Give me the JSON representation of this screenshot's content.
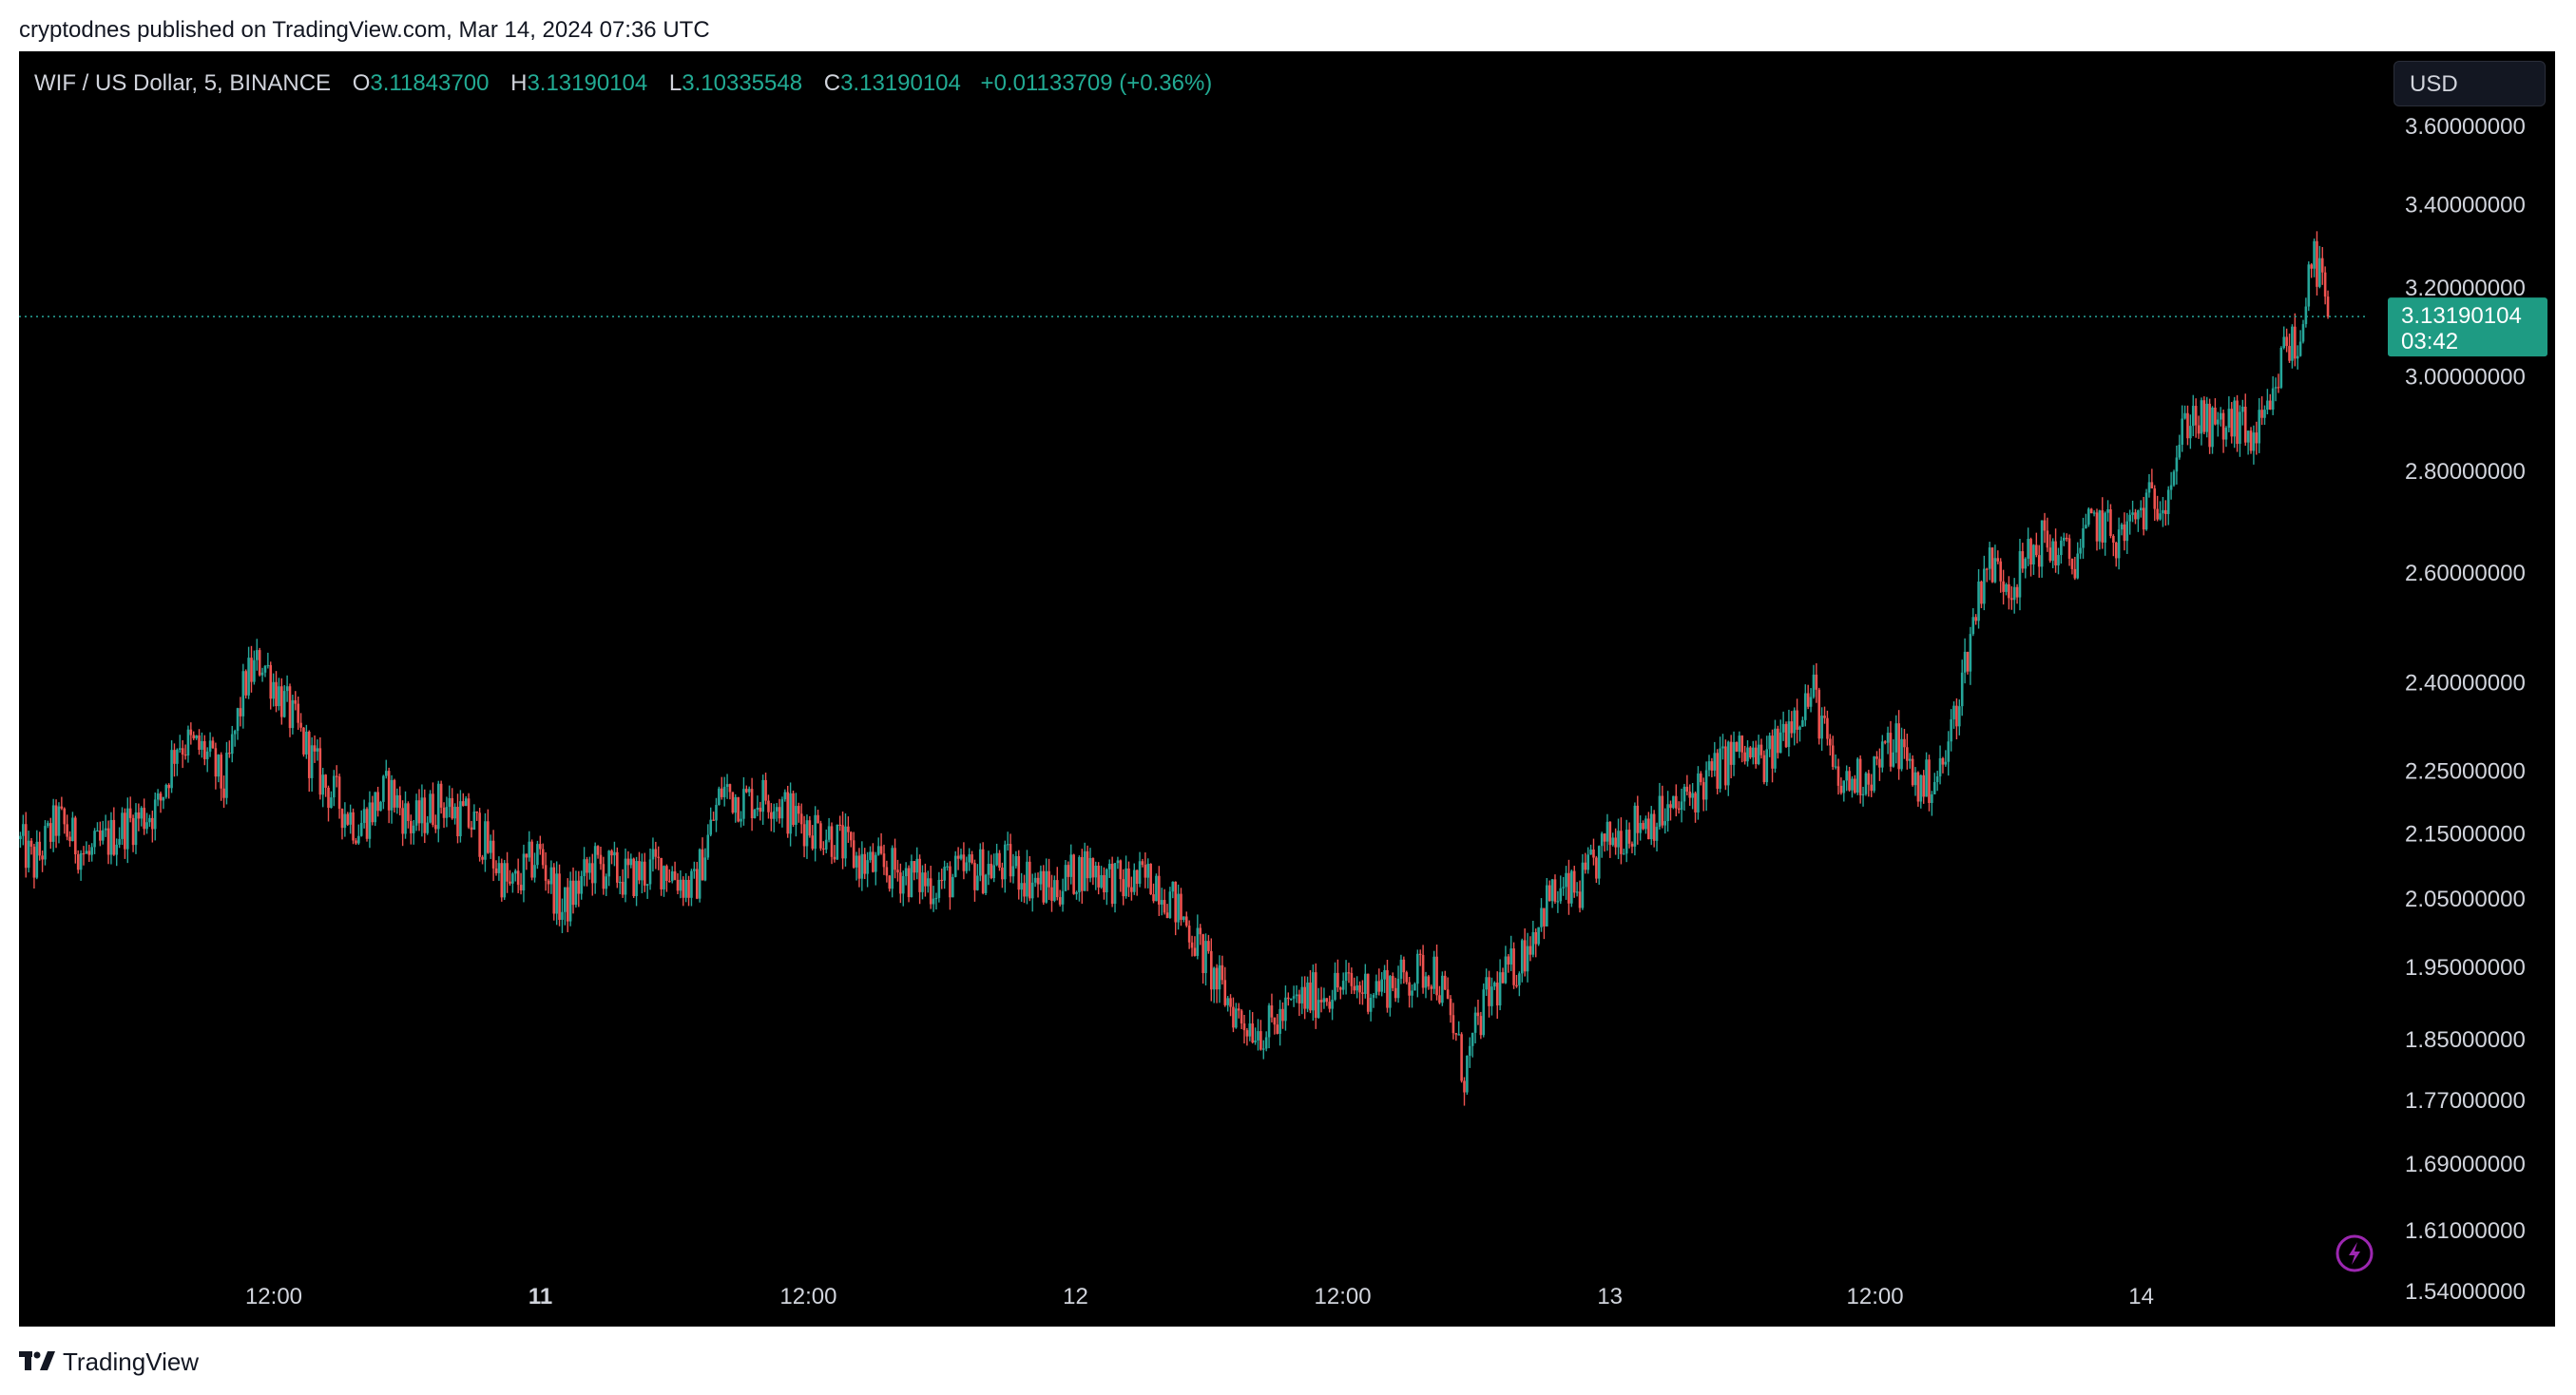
{
  "attribution": "cryptodnes published on TradingView.com, Mar 14, 2024 07:36 UTC",
  "legend": {
    "symbol": "WIF / US Dollar, 5, BINANCE",
    "open_label": "O",
    "open": "3.11843700",
    "high_label": "H",
    "high": "3.13190104",
    "low_label": "L",
    "low": "3.10335548",
    "close_label": "C",
    "close": "3.13190104",
    "change": "+0.01133709 (+0.36%)"
  },
  "currency_button": "USD",
  "price_tag": {
    "price": "3.13190104",
    "countdown": "03:42"
  },
  "footer": {
    "brand": "TradingView",
    "logo_icon": "tradingview-logo-icon"
  },
  "lightning_icon": "lightning-icon",
  "colors": {
    "up": "#26a69a",
    "down": "#ef5350",
    "tag": "#1e9b83",
    "background": "#000000"
  },
  "chart_data": {
    "type": "candlestick",
    "scale": "log",
    "ylim": [
      1.5,
      3.8
    ],
    "y_ticks": [
      {
        "value": 3.6,
        "label": "3.60000000"
      },
      {
        "value": 3.4,
        "label": "3.40000000"
      },
      {
        "value": 3.2,
        "label": "3.20000000"
      },
      {
        "value": 3.0,
        "label": "3.00000000"
      },
      {
        "value": 2.8,
        "label": "2.80000000"
      },
      {
        "value": 2.6,
        "label": "2.60000000"
      },
      {
        "value": 2.4,
        "label": "2.40000000"
      },
      {
        "value": 2.25,
        "label": "2.25000000"
      },
      {
        "value": 2.15,
        "label": "2.15000000"
      },
      {
        "value": 2.05,
        "label": "2.05000000"
      },
      {
        "value": 1.95,
        "label": "1.95000000"
      },
      {
        "value": 1.85,
        "label": "1.85000000"
      },
      {
        "value": 1.77,
        "label": "1.77000000"
      },
      {
        "value": 1.69,
        "label": "1.69000000"
      },
      {
        "value": 1.61,
        "label": "1.61000000"
      },
      {
        "value": 1.54,
        "label": "1.54000000"
      }
    ],
    "x_ticks": [
      {
        "t": 0.1085,
        "label": "12:00",
        "bold": false
      },
      {
        "t": 0.2221,
        "label": "11",
        "bold": true
      },
      {
        "t": 0.3362,
        "label": "12:00",
        "bold": false
      },
      {
        "t": 0.45,
        "label": "12",
        "bold": false
      },
      {
        "t": 0.5638,
        "label": "12:00",
        "bold": false
      },
      {
        "t": 0.6776,
        "label": "13",
        "bold": false
      },
      {
        "t": 0.7905,
        "label": "12:00",
        "bold": false
      },
      {
        "t": 0.9039,
        "label": "14",
        "bold": false
      }
    ],
    "last_price": 3.1319,
    "price_path": [
      [
        0.0,
        2.14
      ],
      [
        0.007,
        2.1
      ],
      [
        0.017,
        2.17
      ],
      [
        0.03,
        2.11
      ],
      [
        0.045,
        2.16
      ],
      [
        0.06,
        2.19
      ],
      [
        0.068,
        2.3
      ],
      [
        0.08,
        2.28
      ],
      [
        0.088,
        2.22
      ],
      [
        0.097,
        2.4
      ],
      [
        0.104,
        2.44
      ],
      [
        0.115,
        2.35
      ],
      [
        0.13,
        2.23
      ],
      [
        0.145,
        2.16
      ],
      [
        0.158,
        2.22
      ],
      [
        0.168,
        2.16
      ],
      [
        0.18,
        2.2
      ],
      [
        0.195,
        2.16
      ],
      [
        0.21,
        2.06
      ],
      [
        0.222,
        2.12
      ],
      [
        0.232,
        2.03
      ],
      [
        0.245,
        2.1
      ],
      [
        0.26,
        2.08
      ],
      [
        0.275,
        2.1
      ],
      [
        0.288,
        2.06
      ],
      [
        0.3,
        2.22
      ],
      [
        0.31,
        2.2
      ],
      [
        0.32,
        2.21
      ],
      [
        0.332,
        2.17
      ],
      [
        0.345,
        2.15
      ],
      [
        0.36,
        2.1
      ],
      [
        0.375,
        2.09
      ],
      [
        0.39,
        2.07
      ],
      [
        0.405,
        2.09
      ],
      [
        0.422,
        2.1
      ],
      [
        0.44,
        2.06
      ],
      [
        0.455,
        2.1
      ],
      [
        0.47,
        2.07
      ],
      [
        0.485,
        2.08
      ],
      [
        0.5,
        2.0
      ],
      [
        0.51,
        1.93
      ],
      [
        0.52,
        1.88
      ],
      [
        0.532,
        1.86
      ],
      [
        0.545,
        1.9
      ],
      [
        0.56,
        1.92
      ],
      [
        0.575,
        1.92
      ],
      [
        0.59,
        1.93
      ],
      [
        0.603,
        1.95
      ],
      [
        0.612,
        1.86
      ],
      [
        0.616,
        1.8
      ],
      [
        0.625,
        1.9
      ],
      [
        0.64,
        1.96
      ],
      [
        0.652,
        2.05
      ],
      [
        0.665,
        2.06
      ],
      [
        0.678,
        2.14
      ],
      [
        0.692,
        2.17
      ],
      [
        0.705,
        2.18
      ],
      [
        0.718,
        2.23
      ],
      [
        0.732,
        2.28
      ],
      [
        0.745,
        2.26
      ],
      [
        0.755,
        2.34
      ],
      [
        0.765,
        2.38
      ],
      [
        0.775,
        2.22
      ],
      [
        0.79,
        2.25
      ],
      [
        0.8,
        2.3
      ],
      [
        0.81,
        2.22
      ],
      [
        0.82,
        2.25
      ],
      [
        0.828,
        2.4
      ],
      [
        0.838,
        2.62
      ],
      [
        0.85,
        2.58
      ],
      [
        0.862,
        2.66
      ],
      [
        0.875,
        2.62
      ],
      [
        0.885,
        2.7
      ],
      [
        0.895,
        2.66
      ],
      [
        0.905,
        2.72
      ],
      [
        0.915,
        2.76
      ],
      [
        0.925,
        2.92
      ],
      [
        0.935,
        2.88
      ],
      [
        0.945,
        2.9
      ],
      [
        0.952,
        2.86
      ],
      [
        0.96,
        2.92
      ],
      [
        0.966,
        3.08
      ],
      [
        0.972,
        3.05
      ],
      [
        0.976,
        3.28
      ],
      [
        0.98,
        3.24
      ],
      [
        0.984,
        3.13
      ]
    ]
  }
}
